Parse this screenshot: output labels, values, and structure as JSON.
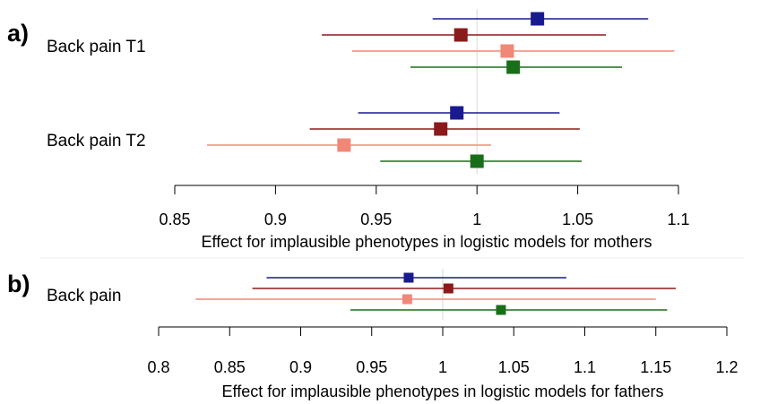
{
  "colors": {
    "blue": "#1a1a8f",
    "darkred": "#8b1a1a",
    "salmon": "#f08878",
    "green": "#1a6e1a",
    "refline": "#d8d8d8",
    "axis": "#000000"
  },
  "chart_data": [
    {
      "type": "forest",
      "panel": "a)",
      "xlabel": "Effect for implausible phenotypes in logistic models for mothers",
      "ticks": [
        "0.85",
        "0.9",
        "0.95",
        "1",
        "1.05",
        "1.1"
      ],
      "xlim": [
        0.85,
        1.1
      ],
      "reference": 1,
      "groups": [
        {
          "label": "Back pain T1",
          "estimates": [
            {
              "color": "blue",
              "est": 1.03,
              "lo": 0.978,
              "hi": 1.085
            },
            {
              "color": "darkred",
              "est": 0.992,
              "lo": 0.923,
              "hi": 1.064
            },
            {
              "color": "salmon",
              "est": 1.015,
              "lo": 0.938,
              "hi": 1.098
            },
            {
              "color": "green",
              "est": 1.018,
              "lo": 0.967,
              "hi": 1.072
            }
          ]
        },
        {
          "label": "Back pain T2",
          "estimates": [
            {
              "color": "blue",
              "est": 0.99,
              "lo": 0.941,
              "hi": 1.041
            },
            {
              "color": "darkred",
              "est": 0.982,
              "lo": 0.917,
              "hi": 1.051
            },
            {
              "color": "salmon",
              "est": 0.934,
              "lo": 0.866,
              "hi": 1.007
            },
            {
              "color": "green",
              "est": 1.0,
              "lo": 0.952,
              "hi": 1.052
            }
          ]
        }
      ]
    },
    {
      "type": "forest",
      "panel": "b)",
      "xlabel": "Effect for implausible phenotypes in logistic models for fathers",
      "ticks": [
        "0.8",
        "0.85",
        "0.9",
        "0.95",
        "1",
        "1.05",
        "1.1",
        "1.15",
        "1.2"
      ],
      "xlim": [
        0.8,
        1.2
      ],
      "reference": 1,
      "groups": [
        {
          "label": "Back pain",
          "estimates": [
            {
              "color": "blue",
              "est": 0.976,
              "lo": 0.876,
              "hi": 1.087
            },
            {
              "color": "darkred",
              "est": 1.004,
              "lo": 0.866,
              "hi": 1.164
            },
            {
              "color": "salmon",
              "est": 0.975,
              "lo": 0.826,
              "hi": 1.15
            },
            {
              "color": "green",
              "est": 1.041,
              "lo": 0.935,
              "hi": 1.158
            }
          ]
        }
      ]
    }
  ]
}
